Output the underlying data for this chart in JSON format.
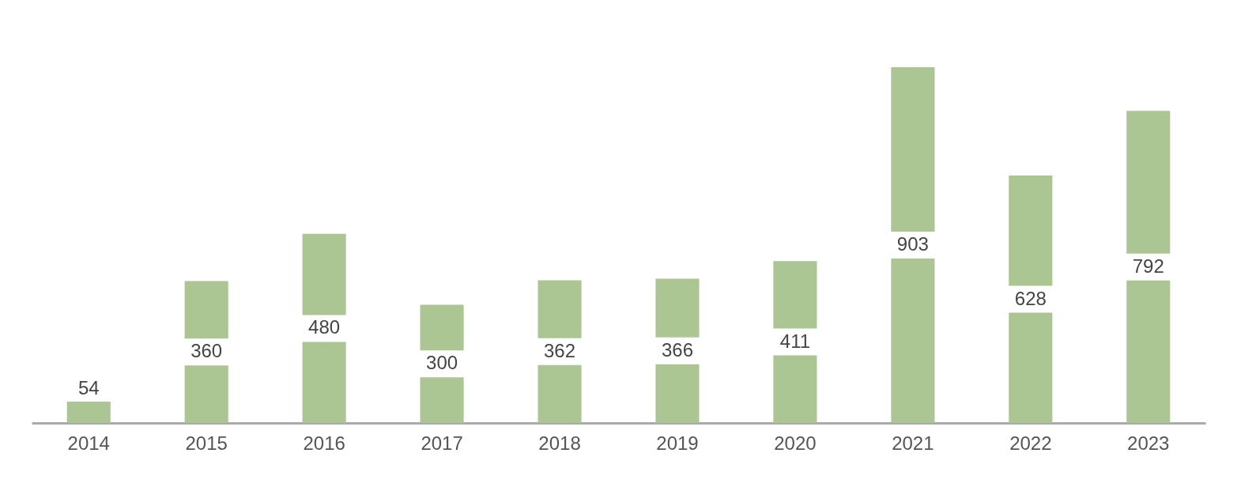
{
  "chart_data": {
    "type": "bar",
    "categories": [
      "2014",
      "2015",
      "2016",
      "2017",
      "2018",
      "2019",
      "2020",
      "2021",
      "2022",
      "2023"
    ],
    "values": [
      54,
      360,
      480,
      300,
      362,
      366,
      411,
      903,
      628,
      792
    ],
    "color": "#abc593",
    "data_labels": true,
    "grid": false
  }
}
